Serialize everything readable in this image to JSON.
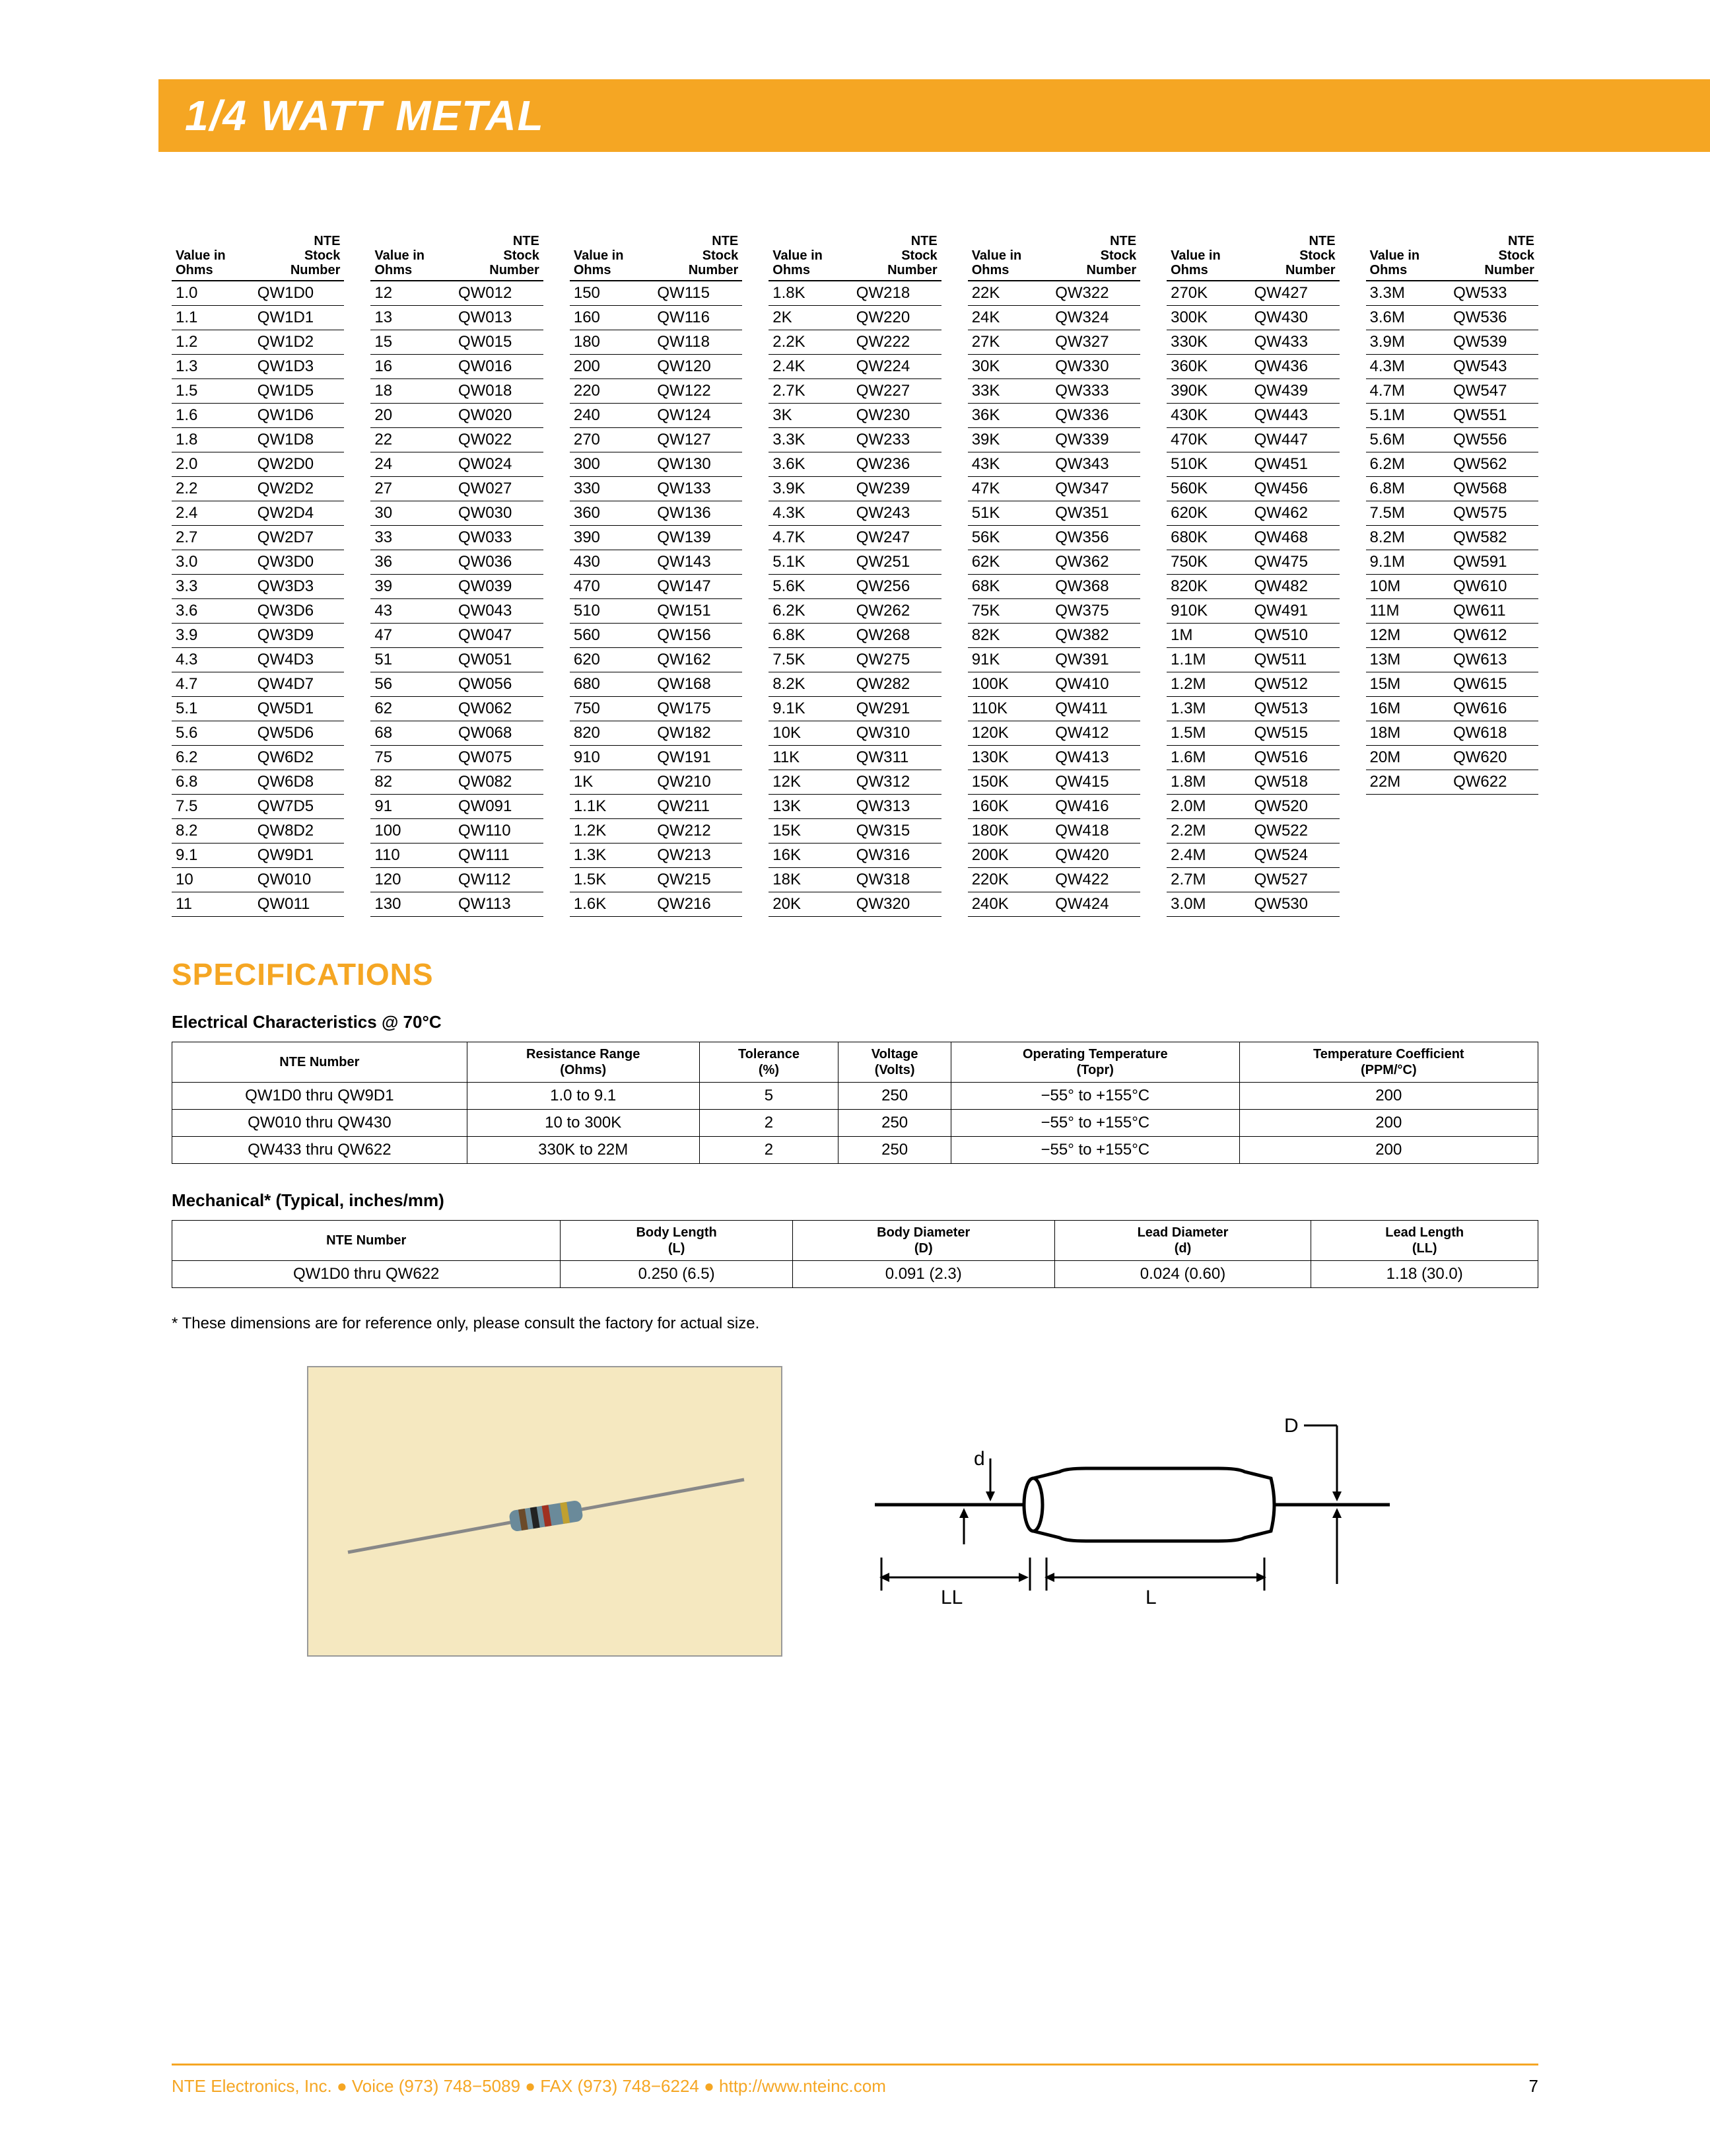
{
  "title": "1/4 WATT METAL",
  "main_table": {
    "header_value": "Value in\nOhms",
    "header_stock": "NTE\nStock\nNumber",
    "columns": [
      [
        [
          "1.0",
          "QW1D0"
        ],
        [
          "1.1",
          "QW1D1"
        ],
        [
          "1.2",
          "QW1D2"
        ],
        [
          "1.3",
          "QW1D3"
        ],
        [
          "1.5",
          "QW1D5"
        ],
        [
          "1.6",
          "QW1D6"
        ],
        [
          "1.8",
          "QW1D8"
        ],
        [
          "2.0",
          "QW2D0"
        ],
        [
          "2.2",
          "QW2D2"
        ],
        [
          "2.4",
          "QW2D4"
        ],
        [
          "2.7",
          "QW2D7"
        ],
        [
          "3.0",
          "QW3D0"
        ],
        [
          "3.3",
          "QW3D3"
        ],
        [
          "3.6",
          "QW3D6"
        ],
        [
          "3.9",
          "QW3D9"
        ],
        [
          "4.3",
          "QW4D3"
        ],
        [
          "4.7",
          "QW4D7"
        ],
        [
          "5.1",
          "QW5D1"
        ],
        [
          "5.6",
          "QW5D6"
        ],
        [
          "6.2",
          "QW6D2"
        ],
        [
          "6.8",
          "QW6D8"
        ],
        [
          "7.5",
          "QW7D5"
        ],
        [
          "8.2",
          "QW8D2"
        ],
        [
          "9.1",
          "QW9D1"
        ],
        [
          "10",
          "QW010"
        ],
        [
          "11",
          "QW011"
        ]
      ],
      [
        [
          "12",
          "QW012"
        ],
        [
          "13",
          "QW013"
        ],
        [
          "15",
          "QW015"
        ],
        [
          "16",
          "QW016"
        ],
        [
          "18",
          "QW018"
        ],
        [
          "20",
          "QW020"
        ],
        [
          "22",
          "QW022"
        ],
        [
          "24",
          "QW024"
        ],
        [
          "27",
          "QW027"
        ],
        [
          "30",
          "QW030"
        ],
        [
          "33",
          "QW033"
        ],
        [
          "36",
          "QW036"
        ],
        [
          "39",
          "QW039"
        ],
        [
          "43",
          "QW043"
        ],
        [
          "47",
          "QW047"
        ],
        [
          "51",
          "QW051"
        ],
        [
          "56",
          "QW056"
        ],
        [
          "62",
          "QW062"
        ],
        [
          "68",
          "QW068"
        ],
        [
          "75",
          "QW075"
        ],
        [
          "82",
          "QW082"
        ],
        [
          "91",
          "QW091"
        ],
        [
          "100",
          "QW110"
        ],
        [
          "110",
          "QW111"
        ],
        [
          "120",
          "QW112"
        ],
        [
          "130",
          "QW113"
        ]
      ],
      [
        [
          "150",
          "QW115"
        ],
        [
          "160",
          "QW116"
        ],
        [
          "180",
          "QW118"
        ],
        [
          "200",
          "QW120"
        ],
        [
          "220",
          "QW122"
        ],
        [
          "240",
          "QW124"
        ],
        [
          "270",
          "QW127"
        ],
        [
          "300",
          "QW130"
        ],
        [
          "330",
          "QW133"
        ],
        [
          "360",
          "QW136"
        ],
        [
          "390",
          "QW139"
        ],
        [
          "430",
          "QW143"
        ],
        [
          "470",
          "QW147"
        ],
        [
          "510",
          "QW151"
        ],
        [
          "560",
          "QW156"
        ],
        [
          "620",
          "QW162"
        ],
        [
          "680",
          "QW168"
        ],
        [
          "750",
          "QW175"
        ],
        [
          "820",
          "QW182"
        ],
        [
          "910",
          "QW191"
        ],
        [
          "1K",
          "QW210"
        ],
        [
          "1.1K",
          "QW211"
        ],
        [
          "1.2K",
          "QW212"
        ],
        [
          "1.3K",
          "QW213"
        ],
        [
          "1.5K",
          "QW215"
        ],
        [
          "1.6K",
          "QW216"
        ]
      ],
      [
        [
          "1.8K",
          "QW218"
        ],
        [
          "2K",
          "QW220"
        ],
        [
          "2.2K",
          "QW222"
        ],
        [
          "2.4K",
          "QW224"
        ],
        [
          "2.7K",
          "QW227"
        ],
        [
          "3K",
          "QW230"
        ],
        [
          "3.3K",
          "QW233"
        ],
        [
          "3.6K",
          "QW236"
        ],
        [
          "3.9K",
          "QW239"
        ],
        [
          "4.3K",
          "QW243"
        ],
        [
          "4.7K",
          "QW247"
        ],
        [
          "5.1K",
          "QW251"
        ],
        [
          "5.6K",
          "QW256"
        ],
        [
          "6.2K",
          "QW262"
        ],
        [
          "6.8K",
          "QW268"
        ],
        [
          "7.5K",
          "QW275"
        ],
        [
          "8.2K",
          "QW282"
        ],
        [
          "9.1K",
          "QW291"
        ],
        [
          "10K",
          "QW310"
        ],
        [
          "11K",
          "QW311"
        ],
        [
          "12K",
          "QW312"
        ],
        [
          "13K",
          "QW313"
        ],
        [
          "15K",
          "QW315"
        ],
        [
          "16K",
          "QW316"
        ],
        [
          "18K",
          "QW318"
        ],
        [
          "20K",
          "QW320"
        ]
      ],
      [
        [
          "22K",
          "QW322"
        ],
        [
          "24K",
          "QW324"
        ],
        [
          "27K",
          "QW327"
        ],
        [
          "30K",
          "QW330"
        ],
        [
          "33K",
          "QW333"
        ],
        [
          "36K",
          "QW336"
        ],
        [
          "39K",
          "QW339"
        ],
        [
          "43K",
          "QW343"
        ],
        [
          "47K",
          "QW347"
        ],
        [
          "51K",
          "QW351"
        ],
        [
          "56K",
          "QW356"
        ],
        [
          "62K",
          "QW362"
        ],
        [
          "68K",
          "QW368"
        ],
        [
          "75K",
          "QW375"
        ],
        [
          "82K",
          "QW382"
        ],
        [
          "91K",
          "QW391"
        ],
        [
          "100K",
          "QW410"
        ],
        [
          "110K",
          "QW411"
        ],
        [
          "120K",
          "QW412"
        ],
        [
          "130K",
          "QW413"
        ],
        [
          "150K",
          "QW415"
        ],
        [
          "160K",
          "QW416"
        ],
        [
          "180K",
          "QW418"
        ],
        [
          "200K",
          "QW420"
        ],
        [
          "220K",
          "QW422"
        ],
        [
          "240K",
          "QW424"
        ]
      ],
      [
        [
          "270K",
          "QW427"
        ],
        [
          "300K",
          "QW430"
        ],
        [
          "330K",
          "QW433"
        ],
        [
          "360K",
          "QW436"
        ],
        [
          "390K",
          "QW439"
        ],
        [
          "430K",
          "QW443"
        ],
        [
          "470K",
          "QW447"
        ],
        [
          "510K",
          "QW451"
        ],
        [
          "560K",
          "QW456"
        ],
        [
          "620K",
          "QW462"
        ],
        [
          "680K",
          "QW468"
        ],
        [
          "750K",
          "QW475"
        ],
        [
          "820K",
          "QW482"
        ],
        [
          "910K",
          "QW491"
        ],
        [
          "1M",
          "QW510"
        ],
        [
          "1.1M",
          "QW511"
        ],
        [
          "1.2M",
          "QW512"
        ],
        [
          "1.3M",
          "QW513"
        ],
        [
          "1.5M",
          "QW515"
        ],
        [
          "1.6M",
          "QW516"
        ],
        [
          "1.8M",
          "QW518"
        ],
        [
          "2.0M",
          "QW520"
        ],
        [
          "2.2M",
          "QW522"
        ],
        [
          "2.4M",
          "QW524"
        ],
        [
          "2.7M",
          "QW527"
        ],
        [
          "3.0M",
          "QW530"
        ]
      ],
      [
        [
          "3.3M",
          "QW533"
        ],
        [
          "3.6M",
          "QW536"
        ],
        [
          "3.9M",
          "QW539"
        ],
        [
          "4.3M",
          "QW543"
        ],
        [
          "4.7M",
          "QW547"
        ],
        [
          "5.1M",
          "QW551"
        ],
        [
          "5.6M",
          "QW556"
        ],
        [
          "6.2M",
          "QW562"
        ],
        [
          "6.8M",
          "QW568"
        ],
        [
          "7.5M",
          "QW575"
        ],
        [
          "8.2M",
          "QW582"
        ],
        [
          "9.1M",
          "QW591"
        ],
        [
          "10M",
          "QW610"
        ],
        [
          "11M",
          "QW611"
        ],
        [
          "12M",
          "QW612"
        ],
        [
          "13M",
          "QW613"
        ],
        [
          "15M",
          "QW615"
        ],
        [
          "16M",
          "QW616"
        ],
        [
          "18M",
          "QW618"
        ],
        [
          "20M",
          "QW620"
        ],
        [
          "22M",
          "QW622"
        ]
      ]
    ]
  },
  "specifications": {
    "heading": "SPECIFICATIONS",
    "elec_heading": "Electrical Characteristics @ 70°C",
    "elec_headers": [
      "NTE Number",
      "Resistance Range\n(Ohms)",
      "Tolerance\n(%)",
      "Voltage\n(Volts)",
      "Operating Temperature\n(Topr)",
      "Temperature Coefficient\n(PPM/°C)"
    ],
    "elec_rows": [
      [
        "QW1D0 thru QW9D1",
        "1.0 to 9.1",
        "5",
        "250",
        "−55° to +155°C",
        "200"
      ],
      [
        "QW010 thru QW430",
        "10 to 300K",
        "2",
        "250",
        "−55° to +155°C",
        "200"
      ],
      [
        "QW433 thru QW622",
        "330K to 22M",
        "2",
        "250",
        "−55° to +155°C",
        "200"
      ]
    ],
    "mech_heading": "Mechanical* (Typical, inches/mm)",
    "mech_headers": [
      "NTE Number",
      "Body Length\n(L)",
      "Body Diameter\n(D)",
      "Lead Diameter\n(d)",
      "Lead Length\n(LL)"
    ],
    "mech_rows": [
      [
        "QW1D0 thru QW622",
        "0.250 (6.5)",
        "0.091 (2.3)",
        "0.024 (0.60)",
        "1.18 (30.0)"
      ]
    ],
    "footnote": "*   These dimensions are for reference only, please consult the factory for actual size."
  },
  "diagram_labels": {
    "d": "d",
    "D": "D",
    "LL": "LL",
    "L": "L"
  },
  "footer": {
    "left": "NTE Electronics, Inc. ● Voice (973) 748−5089 ● FAX (973) 748−6224 ● http://www.nteinc.com",
    "page": "7"
  },
  "colors": {
    "accent": "#f5a623",
    "photo_bg": "#f5e8c0",
    "text": "#000000"
  }
}
